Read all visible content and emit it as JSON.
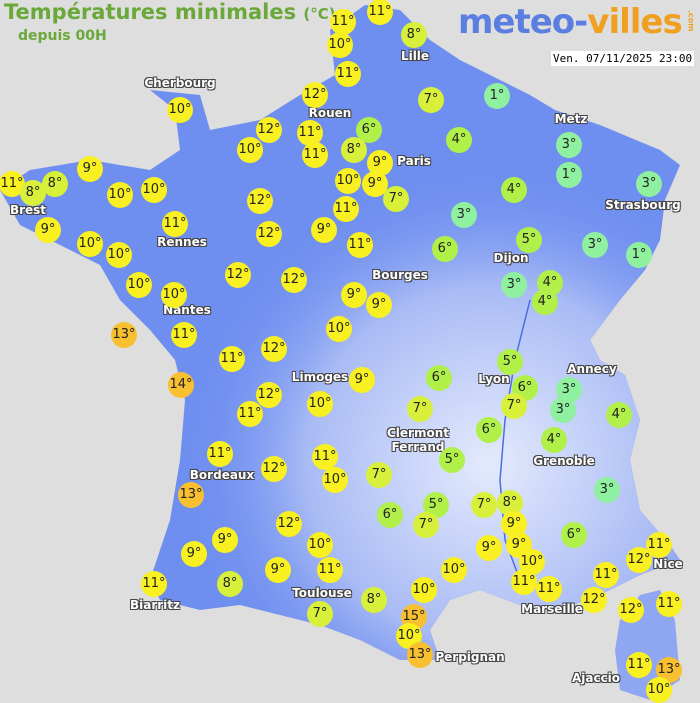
{
  "header": {
    "title": "Températures minimales",
    "unit": "(°C)",
    "subtitle": "depuis 00H",
    "logo": "meteo-villes.com",
    "logo_part1": "meteo-",
    "logo_part2": "villes",
    "logo_com": ".com",
    "datetime": "Ven. 07/11/2025 23:00"
  },
  "colors": {
    "land": "#6f8ff0",
    "land_mountain": "#c8d4f8",
    "sea": "#dedede",
    "temp_1_3": "#8ff0a0",
    "temp_4_6": "#b0f048",
    "temp_7_8": "#d8f03a",
    "temp_9_12": "#f8f020",
    "temp_13_15": "#f8c030"
  },
  "temperatures": [
    11,
    11,
    10,
    8,
    11,
    12,
    7,
    1,
    10,
    12,
    11,
    10,
    11,
    6,
    8,
    4,
    9,
    3,
    9,
    11,
    8,
    8,
    10,
    10,
    10,
    9,
    7,
    1,
    4,
    3,
    12,
    11,
    11,
    9,
    3,
    10,
    10,
    12,
    9,
    11,
    6,
    5,
    3,
    1,
    10,
    12,
    12,
    10,
    9,
    9,
    3,
    4,
    4,
    13,
    11,
    10,
    12,
    11,
    5,
    6,
    7,
    3,
    3,
    4,
    14,
    12,
    9,
    6,
    11,
    10,
    7,
    6,
    4,
    11,
    11,
    10,
    12,
    7,
    5,
    13,
    3,
    5,
    7,
    8,
    6,
    7,
    9,
    6,
    12,
    9,
    9,
    10,
    9,
    9,
    10,
    9,
    11,
    10,
    11,
    11,
    11,
    12,
    11,
    11,
    8,
    10,
    8,
    12,
    12,
    11,
    7,
    15,
    10,
    13,
    11,
    13,
    10
  ],
  "cities": [
    "Cherbourg",
    "Lille",
    "Rouen",
    "Paris",
    "Metz",
    "Strasbourg",
    "Brest",
    "Rennes",
    "Dijon",
    "Bourges",
    "Nantes",
    "Limoges",
    "Annecy",
    "Lyon",
    "Clermont Ferrand",
    "Grenoble",
    "Bordeaux",
    "Toulouse",
    "Biarritz",
    "Marseille",
    "Nice",
    "Perpignan",
    "Ajaccio"
  ]
}
